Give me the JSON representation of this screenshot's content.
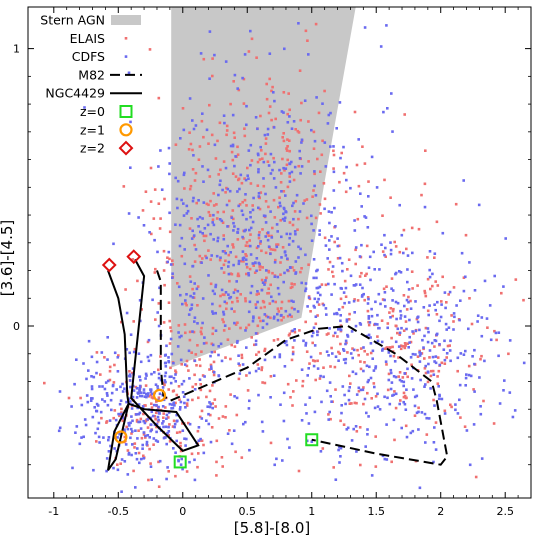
{
  "chart_data": {
    "type": "scatter",
    "xlabel": "[5.8]-[8.0]",
    "ylabel": "[3.6]-[4.5]",
    "xlim": [
      -1.2,
      2.7
    ],
    "ylim": [
      -0.62,
      1.15
    ],
    "xticks": [
      -1,
      -0.5,
      0,
      0.5,
      1,
      1.5,
      2,
      2.5
    ],
    "xtick_labels": [
      "-1",
      "-0.5",
      "0",
      "0.5",
      "1",
      "1.5",
      "2",
      "2.5"
    ],
    "yticks": [
      0,
      1
    ],
    "ytick_labels": [
      "0",
      "1"
    ],
    "minor_yticks": [
      -0.5,
      -0.4,
      -0.3,
      -0.2,
      -0.1,
      0.1,
      0.2,
      0.3,
      0.4,
      0.5,
      0.6,
      0.7,
      0.8,
      0.9
    ],
    "legend_position": "top-left",
    "legend": [
      {
        "key": "stern",
        "label": "Stern AGN"
      },
      {
        "key": "elais",
        "label": "ELAIS"
      },
      {
        "key": "cdfs",
        "label": "CDFS"
      },
      {
        "key": "m82",
        "label": "M82"
      },
      {
        "key": "ngc4429",
        "label": "NGC4429"
      },
      {
        "key": "z0",
        "label": "z=0"
      },
      {
        "key": "z1",
        "label": "z=1"
      },
      {
        "key": "z2",
        "label": "z=2"
      }
    ],
    "colors": {
      "stern": "#c8c8c8",
      "elais": "#f07070",
      "cdfs": "#6a6af0",
      "m82": "#000000",
      "ngc4429": "#000000",
      "z0": "#22dd22",
      "z1": "#ff9900",
      "z2": "#dd1111"
    },
    "stern_agn_region": [
      [
        -0.09,
        1.2
      ],
      [
        1.36,
        1.2
      ],
      [
        1.1,
        0.52
      ],
      [
        0.92,
        0.03
      ],
      [
        -0.09,
        -0.15
      ]
    ],
    "m82_track": [
      [
        -0.2,
        0.2
      ],
      [
        -0.17,
        0.16
      ],
      [
        -0.17,
        -0.15
      ],
      [
        -0.15,
        -0.25
      ],
      [
        -0.1,
        -0.27
      ],
      [
        0.5,
        -0.15
      ],
      [
        0.8,
        -0.05
      ],
      [
        1.05,
        -0.01
      ],
      [
        1.28,
        0.0
      ],
      [
        1.65,
        -0.1
      ],
      [
        1.93,
        -0.2
      ],
      [
        1.97,
        -0.27
      ],
      [
        2.05,
        -0.47
      ],
      [
        2.0,
        -0.5
      ],
      [
        1.5,
        -0.46
      ],
      [
        1.0,
        -0.41
      ]
    ],
    "ngc4429_track": [
      [
        -0.58,
        0.2
      ],
      [
        -0.5,
        0.1
      ],
      [
        -0.45,
        -0.03
      ],
      [
        -0.43,
        -0.25
      ],
      [
        -0.42,
        -0.28
      ],
      [
        -0.53,
        -0.38
      ],
      [
        -0.58,
        -0.52
      ],
      [
        -0.52,
        -0.48
      ],
      [
        -0.48,
        -0.4
      ],
      [
        -0.42,
        -0.28
      ],
      [
        -0.3,
        -0.3
      ],
      [
        -0.05,
        -0.31
      ],
      [
        0.12,
        -0.43
      ],
      [
        0.0,
        -0.45
      ],
      [
        -0.2,
        -0.36
      ],
      [
        -0.4,
        -0.26
      ],
      [
        -0.3,
        0.18
      ],
      [
        -0.37,
        0.24
      ]
    ],
    "z_markers": [
      {
        "z": "z=0",
        "points": [
          [
            -0.02,
            -0.49
          ],
          [
            1.0,
            -0.41
          ]
        ]
      },
      {
        "z": "z=1",
        "points": [
          [
            -0.18,
            -0.25
          ],
          [
            -0.48,
            -0.4
          ]
        ]
      },
      {
        "z": "z=2",
        "points": [
          [
            -0.57,
            0.22
          ],
          [
            -0.38,
            0.25
          ]
        ]
      }
    ],
    "scatter_clouds": [
      {
        "name": "ELAIS",
        "n": 920,
        "seed": 11,
        "blobs": [
          {
            "cx": 0.45,
            "cy": 0.25,
            "sx": 0.38,
            "sy": 0.3,
            "w": 0.42
          },
          {
            "cx": 1.6,
            "cy": -0.05,
            "sx": 0.42,
            "sy": 0.2,
            "w": 0.27
          },
          {
            "cx": -0.2,
            "cy": -0.3,
            "sx": 0.3,
            "sy": 0.14,
            "w": 0.21
          },
          {
            "cx": 0.8,
            "cy": 0.6,
            "sx": 0.35,
            "sy": 0.25,
            "w": 0.1
          }
        ]
      },
      {
        "name": "CDFS",
        "n": 1320,
        "seed": 29,
        "blobs": [
          {
            "cx": 0.5,
            "cy": 0.22,
            "sx": 0.42,
            "sy": 0.32,
            "w": 0.35
          },
          {
            "cx": 1.65,
            "cy": -0.1,
            "sx": 0.42,
            "sy": 0.22,
            "w": 0.33
          },
          {
            "cx": -0.3,
            "cy": -0.32,
            "sx": 0.3,
            "sy": 0.13,
            "w": 0.24
          },
          {
            "cx": 0.8,
            "cy": 0.62,
            "sx": 0.35,
            "sy": 0.25,
            "w": 0.08
          }
        ]
      }
    ]
  }
}
